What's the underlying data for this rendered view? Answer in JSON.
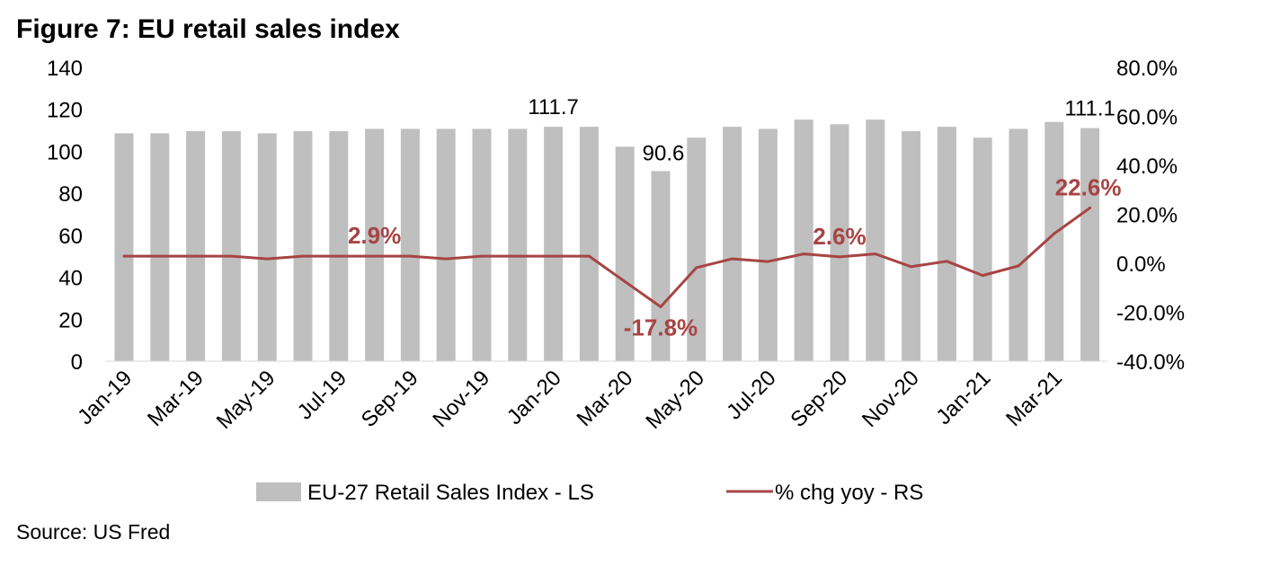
{
  "chart_data": {
    "type": "bar+line",
    "title": "Figure 7: EU retail sales index",
    "source": "Source: US Fred",
    "categories": [
      "Jan-19",
      "Feb-19",
      "Mar-19",
      "Apr-19",
      "May-19",
      "Jun-19",
      "Jul-19",
      "Aug-19",
      "Sep-19",
      "Oct-19",
      "Nov-19",
      "Dec-19",
      "Jan-20",
      "Feb-20",
      "Mar-20",
      "Apr-20",
      "May-20",
      "Jun-20",
      "Jul-20",
      "Aug-20",
      "Sep-20",
      "Oct-20",
      "Nov-20",
      "Dec-20",
      "Jan-21",
      "Feb-21",
      "Mar-21",
      "Apr-21"
    ],
    "x_tick_labels": [
      "Jan-19",
      "Mar-19",
      "May-19",
      "Jul-19",
      "Sep-19",
      "Nov-19",
      "Jan-20",
      "Mar-20",
      "May-20",
      "Jul-20",
      "Sep-20",
      "Nov-20",
      "Jan-21",
      "Mar-21"
    ],
    "series": [
      {
        "name": "EU-27 Retail Sales Index - LS",
        "type": "bar",
        "axis": "left",
        "color": "#bfbfbf",
        "values": [
          108.6,
          108.6,
          109.6,
          109.6,
          108.6,
          109.6,
          109.6,
          110.7,
          110.7,
          110.7,
          110.7,
          110.7,
          111.7,
          111.7,
          102.2,
          90.6,
          106.5,
          111.7,
          110.7,
          115.1,
          112.9,
          115.1,
          109.6,
          111.7,
          106.5,
          110.7,
          114.0,
          111.1
        ]
      },
      {
        "name": "% chg yoy - RS",
        "type": "line",
        "axis": "right",
        "color": "#a84444",
        "values": [
          2.9,
          2.9,
          2.9,
          2.9,
          1.8,
          2.9,
          2.9,
          2.9,
          2.9,
          1.8,
          2.9,
          2.9,
          2.9,
          2.9,
          -7.5,
          -17.8,
          -1.8,
          1.8,
          0.7,
          3.8,
          2.6,
          3.8,
          -1.4,
          0.8,
          -5.0,
          -1.1,
          12.1,
          22.6
        ]
      }
    ],
    "left_axis": {
      "ylim": [
        0,
        140
      ],
      "ticks": [
        "0",
        "20",
        "40",
        "60",
        "80",
        "100",
        "120",
        "140"
      ]
    },
    "right_axis": {
      "ylim": [
        -40,
        80
      ],
      "ticks": [
        "-40.0%",
        "-20.0%",
        "0.0%",
        "20.0%",
        "40.0%",
        "60.0%",
        "80.0%"
      ]
    },
    "annotations": [
      {
        "text": "111.7",
        "series": 0,
        "index": 12
      },
      {
        "text": "90.6",
        "series": 0,
        "index": 15
      },
      {
        "text": "111.1",
        "series": 0,
        "index": 27
      },
      {
        "text": "2.9%",
        "series": 1,
        "index": 7
      },
      {
        "text": "-17.8%",
        "series": 1,
        "index": 15
      },
      {
        "text": "2.6%",
        "series": 1,
        "index": 20
      },
      {
        "text": "22.6%",
        "series": 1,
        "index": 27
      }
    ],
    "legend": {
      "placement": "bottom"
    },
    "grid": false
  }
}
